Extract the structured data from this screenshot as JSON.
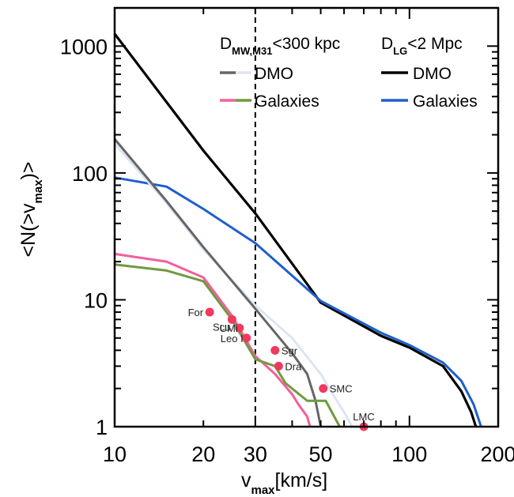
{
  "chart_data": {
    "type": "line",
    "title": "",
    "xlabel": "v_max[km/s]",
    "ylabel": "<N(>v_max)>",
    "xscale": "log",
    "yscale": "log",
    "xlim": [
      10,
      200
    ],
    "ylim": [
      1,
      2000
    ],
    "x_tick_labels": [
      "10",
      "20",
      "30",
      "50",
      "100",
      "200"
    ],
    "y_tick_labels": [
      "1",
      "10",
      "100",
      "1000"
    ],
    "x_ticks": [
      10,
      20,
      30,
      50,
      100,
      200
    ],
    "y_ticks": [
      1,
      10,
      100,
      1000
    ],
    "grid": false,
    "reference_line": {
      "x": 30,
      "style": "dashed"
    },
    "legend": {
      "placement": "top-right",
      "col1_heading": "D",
      "col1_heading_sub": "MW,M31",
      "col1_heading_rest": "<300 kpc",
      "col2_heading": "D",
      "col2_heading_sub": "LG",
      "col2_heading_rest": "<2 Mpc",
      "entries": [
        {
          "label": "DMO",
          "colors": [
            "#666666",
            "#dde4f4"
          ]
        },
        {
          "label": "Galaxies",
          "colors": [
            "#f2609a",
            "#6f9a3f"
          ]
        },
        {
          "label": "DMO",
          "colors": [
            "#000000"
          ]
        },
        {
          "label": "Galaxies",
          "colors": [
            "#1f5fcc"
          ]
        }
      ]
    },
    "series": [
      {
        "color": "#000000",
        "x": [
          10,
          20,
          30,
          50,
          80,
          100,
          130,
          150,
          162,
          168
        ],
        "y": [
          1250,
          150,
          48,
          9.5,
          5.2,
          4.2,
          3.0,
          1.9,
          1.3,
          1.0
        ]
      },
      {
        "color": "#1f5fcc",
        "x": [
          10,
          15,
          20,
          30,
          50,
          80,
          100,
          130,
          150,
          165,
          175
        ],
        "y": [
          92,
          78,
          52,
          28,
          9.8,
          5.5,
          4.4,
          3.2,
          2.3,
          1.5,
          1.0
        ]
      },
      {
        "color": "#dde4f4",
        "x": [
          10,
          15,
          20,
          30,
          40,
          50,
          55,
          60,
          64
        ],
        "y": [
          170,
          58,
          25,
          9.0,
          5.0,
          2.6,
          1.8,
          1.3,
          1.0
        ]
      },
      {
        "color": "#666666",
        "x": [
          10,
          15,
          20,
          30,
          40,
          45,
          48,
          50
        ],
        "y": [
          185,
          60,
          26,
          8.5,
          3.8,
          2.6,
          1.6,
          1.0
        ]
      },
      {
        "color": "#f2609a",
        "x": [
          10,
          15,
          20,
          25,
          30,
          35,
          40,
          42,
          45,
          46
        ],
        "y": [
          23,
          20,
          15,
          7.5,
          3.6,
          2.6,
          1.8,
          1.5,
          1.2,
          1.0
        ]
      },
      {
        "color": "#6f9a3f",
        "x": [
          10,
          15,
          20,
          25,
          30,
          35,
          38,
          45,
          52,
          58
        ],
        "y": [
          19,
          17,
          14,
          7.0,
          3.4,
          3.0,
          2.2,
          1.6,
          1.6,
          1.0
        ]
      }
    ],
    "points": [
      {
        "label": "For",
        "x": 21,
        "y": 8
      },
      {
        "label": "Scu",
        "x": 25,
        "y": 7
      },
      {
        "label": "UMi",
        "x": 26.5,
        "y": 6
      },
      {
        "label": "Leo I",
        "x": 28,
        "y": 5
      },
      {
        "label": "Sgr",
        "x": 35,
        "y": 4
      },
      {
        "label": "Dra",
        "x": 36,
        "y": 3
      },
      {
        "label": "SMC",
        "x": 51,
        "y": 2
      },
      {
        "label": "LMC",
        "x": 70,
        "y": 1
      }
    ],
    "point_color": "#f2385f"
  }
}
